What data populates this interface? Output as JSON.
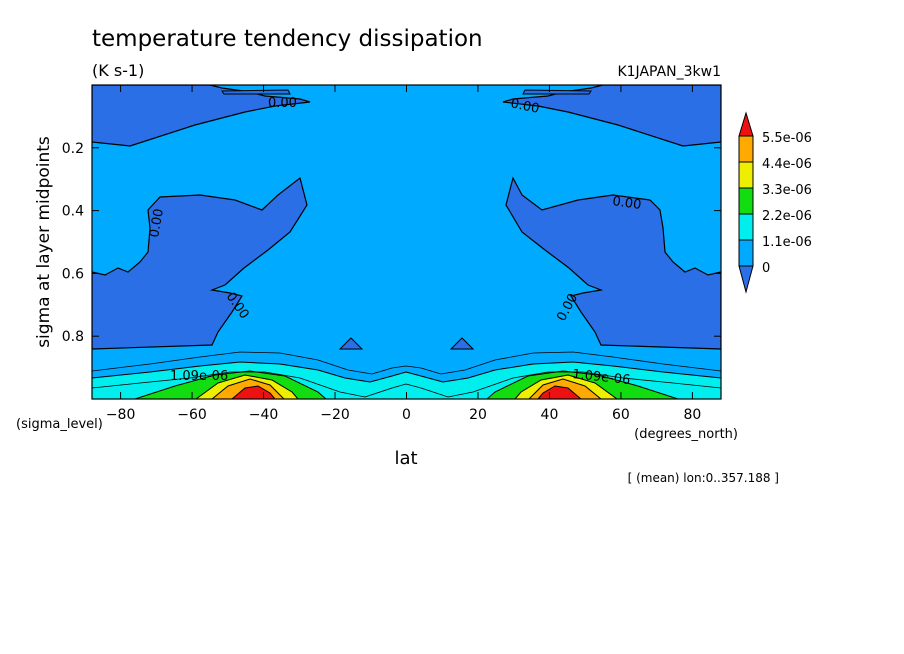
{
  "chart_data": {
    "type": "contour",
    "title": "temperature tendency dissipation",
    "units": "(K s-1)",
    "run_label": "K1JAPAN_3kw1",
    "xlabel": "lat",
    "x_unit_label": "(degrees_north)",
    "ylabel": "sigma at layer midpoints",
    "y_unit_label": "(sigma_level)",
    "footnote": "[ (mean) lon:0..357.188 ]",
    "xlim": [
      -88,
      88
    ],
    "ylim": [
      1.0,
      0.0
    ],
    "x_ticks": [
      -80,
      -60,
      -40,
      -20,
      0,
      20,
      40,
      60,
      80
    ],
    "y_ticks": [
      0.2,
      0.4,
      0.6,
      0.8
    ],
    "colorbar_levels": [
      "5.5e-06",
      "4.4e-06",
      "3.3e-06",
      "2.2e-06",
      "1.1e-06",
      "0"
    ],
    "contour_labels": [
      "0.00",
      "0.00",
      "0.00",
      "0.00",
      "0.00",
      "0.00",
      "1.09e-06",
      "1.09e-06"
    ],
    "colors": {
      "below_zero": "#2b6fe6",
      "zero_to_1.1e-06": "#00aaff",
      "1.1e-06_to_2.2e-06": "#00eeee",
      "2.2e-06_to_3.3e-06": "#11dd11",
      "3.3e-06_to_4.4e-06": "#eeee00",
      "4.4e-06_to_5.5e-06": "#ffaa00",
      "above_5.5e-06": "#ee1111"
    }
  }
}
